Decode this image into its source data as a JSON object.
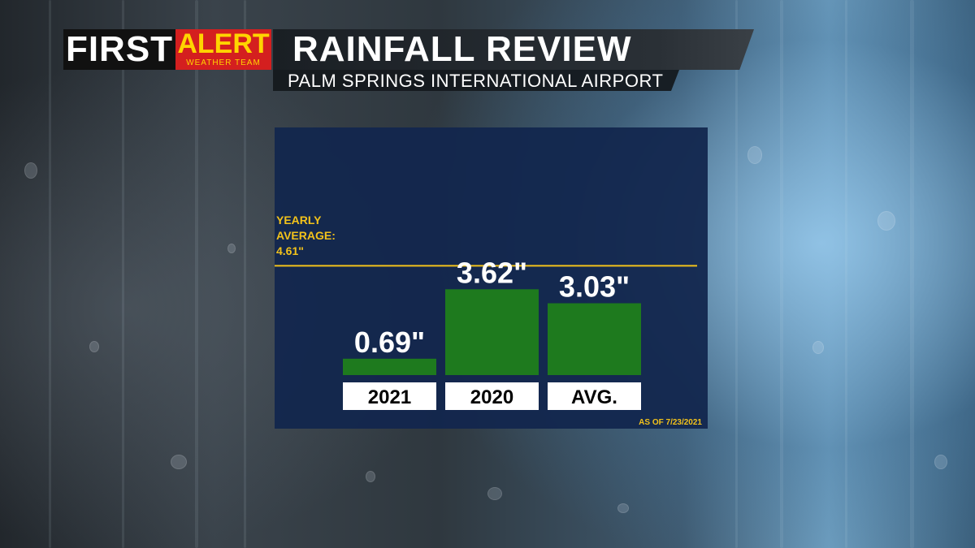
{
  "brand": {
    "first": "FIRST",
    "alert": "ALERT",
    "team": "WEATHER TEAM",
    "first_color": "#ffffff",
    "alert_bg": "#d41f1f",
    "alert_color": "#ffd400"
  },
  "chart_data": {
    "type": "bar",
    "title": "RAINFALL REVIEW",
    "subtitle": "PALM SPRINGS INTERNATIONAL AIRPORT",
    "categories": [
      "2021",
      "2020",
      "AVG."
    ],
    "values": [
      0.69,
      3.62,
      3.03
    ],
    "value_labels": [
      "0.69\"",
      "3.62\"",
      "3.03\""
    ],
    "unit": "inches",
    "bar_color": "#1e7a1e",
    "reference_line": {
      "label_lines": [
        "YEARLY",
        "AVERAGE:",
        "4.61\""
      ],
      "value": 4.61,
      "color": "#f2c21b"
    },
    "footnote": "AS OF 7/23/2021",
    "panel_color": "#12264e",
    "grid": false
  }
}
